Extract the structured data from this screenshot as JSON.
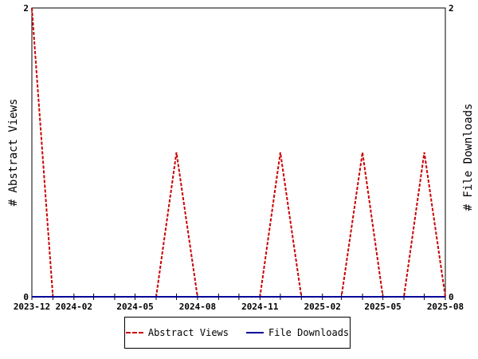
{
  "chart_data": {
    "type": "line",
    "title": "",
    "ylabel_left": "# Abstract Views",
    "ylabel_right": "# File Downloads",
    "x_ticks": [
      "2023-12",
      "2024-02",
      "2024-05",
      "2024-08",
      "2024-11",
      "2025-02",
      "2025-05",
      "2025-08"
    ],
    "y_ticks_left": [
      "0",
      "2"
    ],
    "y_ticks_right": [
      "0",
      "2"
    ],
    "xlim": [
      "2023-12-01",
      "2025-08-01"
    ],
    "ylim": [
      0,
      2
    ],
    "grid": false,
    "legend_position": "bottom",
    "series": [
      {
        "name": "Abstract Views",
        "color": "#cc0000",
        "style": "dashed",
        "axis": "left",
        "points": [
          [
            "2023-12-01",
            2
          ],
          [
            "2024-01-01",
            0
          ],
          [
            "2024-06-01",
            0
          ],
          [
            "2024-07-01",
            1
          ],
          [
            "2024-08-01",
            0
          ],
          [
            "2024-11-01",
            0
          ],
          [
            "2024-12-01",
            1
          ],
          [
            "2025-01-01",
            0
          ],
          [
            "2025-03-01",
            0
          ],
          [
            "2025-04-01",
            1
          ],
          [
            "2025-05-01",
            0
          ],
          [
            "2025-06-01",
            0
          ],
          [
            "2025-07-01",
            1
          ],
          [
            "2025-08-01",
            0
          ]
        ]
      },
      {
        "name": "File Downloads",
        "color": "#000099",
        "style": "solid",
        "axis": "right",
        "points": [
          [
            "2023-12-01",
            0
          ],
          [
            "2025-08-01",
            0
          ]
        ]
      }
    ]
  },
  "legend": {
    "views_label": "Abstract Views",
    "downloads_label": "File Downloads"
  }
}
